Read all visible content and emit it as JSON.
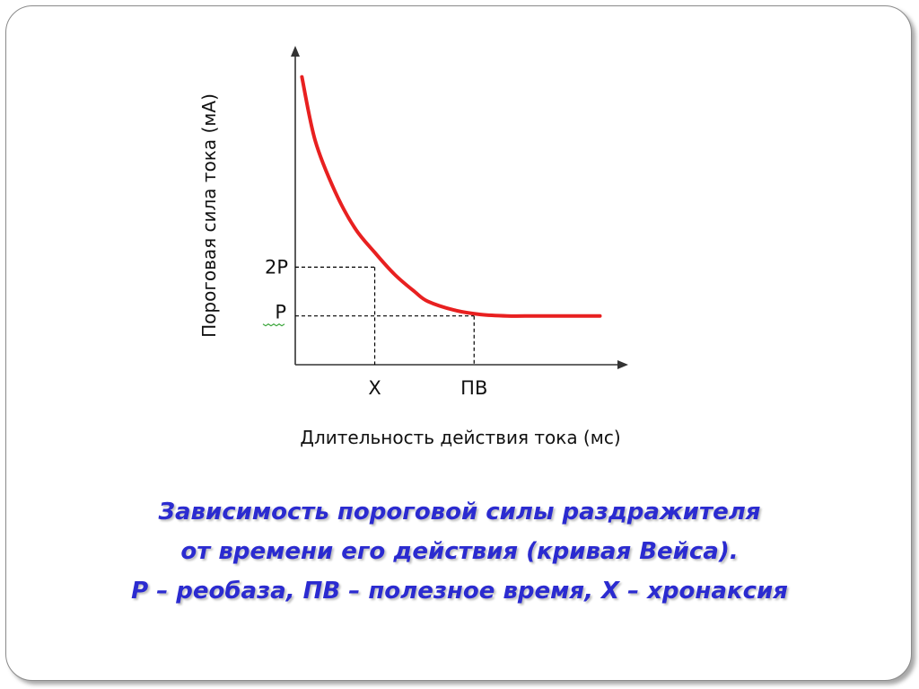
{
  "chart_data": {
    "type": "line",
    "title": "",
    "xlabel": "Длительность действия тока (мс)",
    "ylabel": "Пороговая сила тока (мА)",
    "x_ticks": [
      "Х",
      "ПВ"
    ],
    "y_ticks": [
      "2Р",
      "Р"
    ],
    "grid": false,
    "series": [
      {
        "color": "#e82020",
        "x": [
          0.05,
          0.15,
          0.3,
          0.45,
          0.6,
          0.75,
          0.9,
          1.0,
          1.2,
          1.4,
          1.6,
          1.8,
          2.0,
          2.3
        ],
        "y": [
          5.9,
          4.6,
          3.55,
          2.8,
          2.3,
          1.85,
          1.5,
          1.3,
          1.12,
          1.03,
          1.0,
          1.0,
          1.0,
          1.0
        ]
      }
    ],
    "reference_points": [
      {
        "label": "Х",
        "x": 0.6,
        "y": 2.0
      },
      {
        "label": "ПВ",
        "x": 1.35,
        "y": 1.0
      }
    ],
    "xlim": [
      0,
      2.5
    ],
    "ylim": [
      0,
      6.5
    ]
  },
  "caption": {
    "line1": "Зависимость пороговой силы раздражителя",
    "line2": "от времени его действия (кривая Вейса).",
    "line3": "Р – реобаза, ПВ – полезное время, Х – хронаксия"
  },
  "colors": {
    "curve": "#e82020",
    "caption": "#2b2bd0",
    "axis": "#333333"
  }
}
